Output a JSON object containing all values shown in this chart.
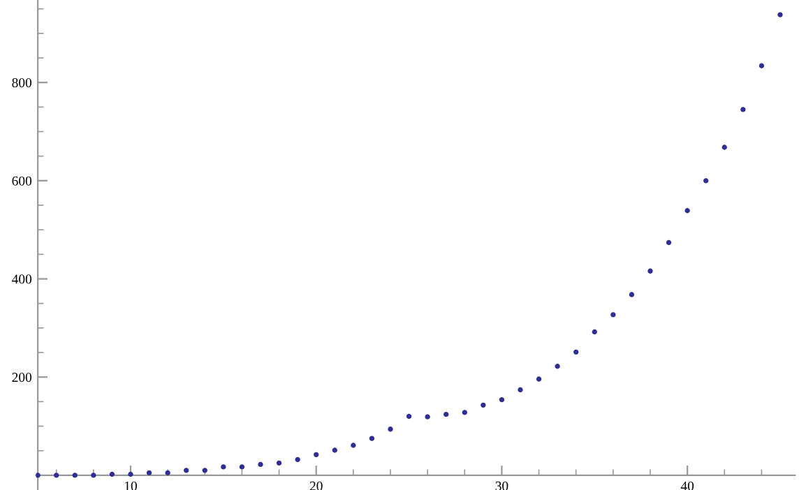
{
  "chart_data": {
    "type": "scatter",
    "x": [
      5,
      6,
      7,
      8,
      9,
      10,
      11,
      12,
      13,
      14,
      15,
      16,
      17,
      18,
      19,
      20,
      21,
      22,
      23,
      24,
      25,
      26,
      27,
      28,
      29,
      30,
      31,
      32,
      33,
      34,
      35,
      36,
      37,
      38,
      39,
      40,
      41,
      42,
      43,
      44,
      45
    ],
    "series": [
      {
        "color": "#2e2e99",
        "values": [
          0,
          0,
          0,
          0,
          2,
          2,
          5,
          5,
          10,
          10,
          17,
          17,
          22,
          25,
          32,
          42,
          51,
          61,
          75,
          94,
          120,
          119,
          124,
          128,
          143,
          154,
          174,
          196,
          222,
          251,
          292,
          327,
          368,
          416,
          474,
          539,
          600,
          668,
          745,
          834,
          938
        ]
      }
    ],
    "xlim": [
      4.9,
      45.8
    ],
    "ylim": [
      -30,
      968
    ],
    "xticks": [
      10,
      20,
      30,
      40
    ],
    "yticks": [
      200,
      400,
      600,
      800
    ],
    "marker": "circle",
    "grid": false,
    "legend": false
  }
}
